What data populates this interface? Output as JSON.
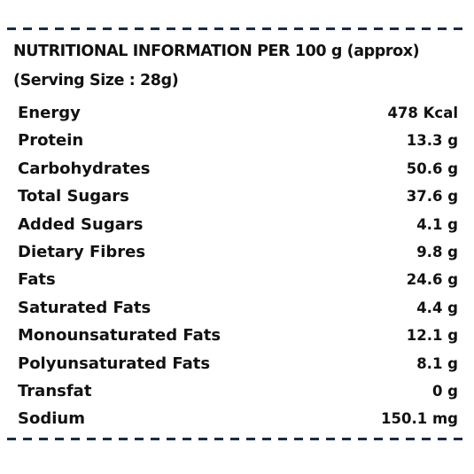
{
  "panel": {
    "title": "NUTRITIONAL INFORMATION PER 100 g (approx)",
    "serving_size": "(Serving Size : 28g)",
    "accent_color": "#1f2a44"
  },
  "nutrients": [
    {
      "name": "Energy",
      "value": "478 Kcal"
    },
    {
      "name": "Protein",
      "value": "13.3 g"
    },
    {
      "name": "Carbohydrates",
      "value": "50.6 g"
    },
    {
      "name": "Total Sugars",
      "value": "37.6 g"
    },
    {
      "name": "Added Sugars",
      "value": "4.1 g"
    },
    {
      "name": "Dietary Fibres",
      "value": "9.8 g"
    },
    {
      "name": "Fats",
      "value": "24.6 g"
    },
    {
      "name": "Saturated Fats",
      "value": "4.4 g"
    },
    {
      "name": "Monounsaturated Fats",
      "value": "12.1 g"
    },
    {
      "name": "Polyunsaturated Fats",
      "value": "8.1 g"
    },
    {
      "name": "Transfat",
      "value": "0 g"
    },
    {
      "name": "Sodium",
      "value": "150.1 mg"
    }
  ]
}
